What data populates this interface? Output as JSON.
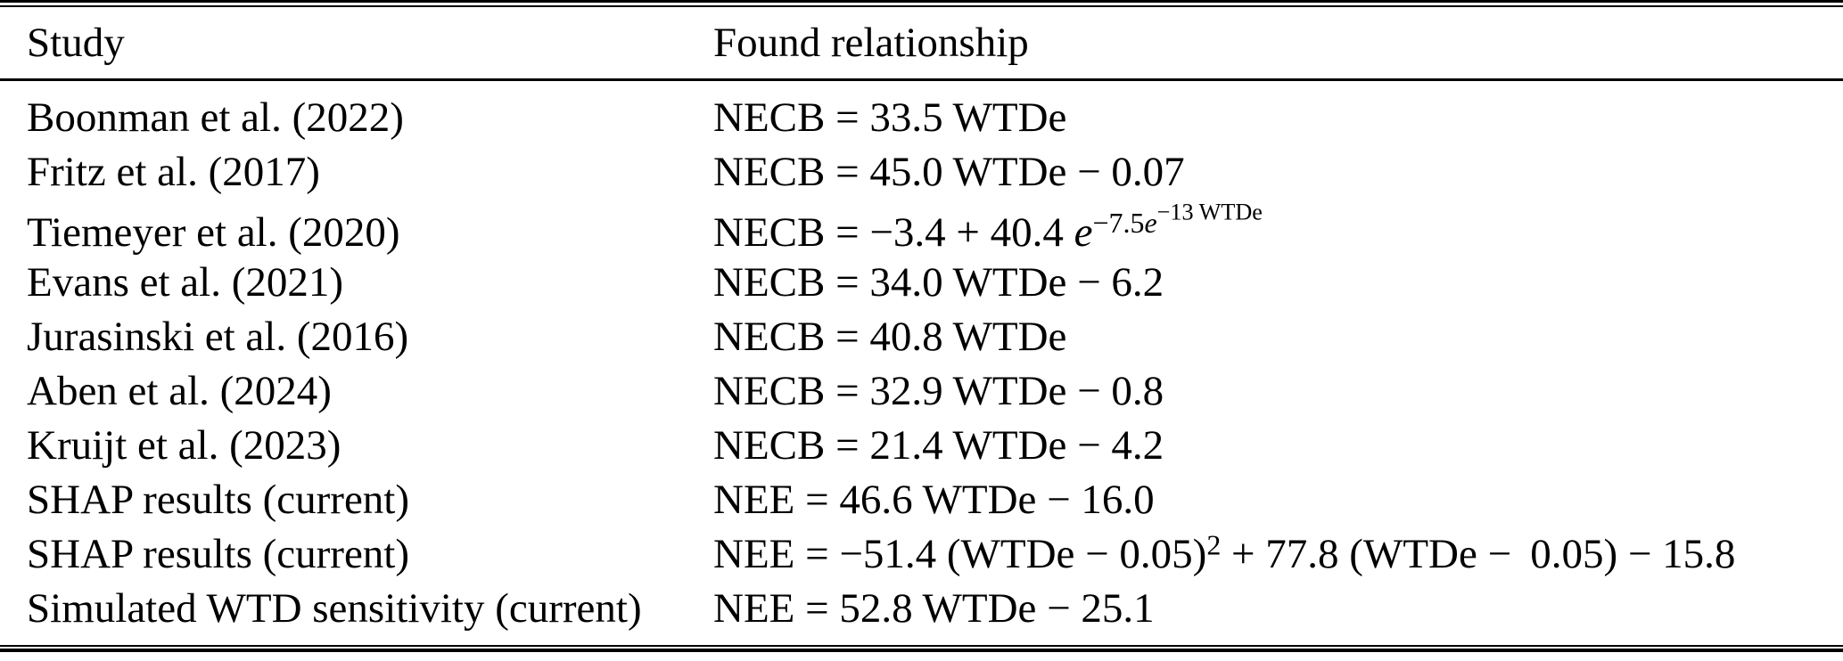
{
  "colors": {
    "text": "#000000",
    "rules": "#000000",
    "background": "#ffffff"
  },
  "table": {
    "headers": {
      "study": "Study",
      "relationship": "Found relationship"
    },
    "rows": [
      {
        "study": "Boonman et al. (2022)",
        "formula": [
          {
            "t": "NECB = 33.5 WTDe"
          }
        ]
      },
      {
        "study": "Fritz et al. (2017)",
        "formula": [
          {
            "t": "NECB = 45.0 WTDe − 0.07"
          }
        ]
      },
      {
        "study": "Tiemeyer et al. (2020)",
        "formula": [
          {
            "t": "NECB = −3.4 + 40.4 "
          },
          {
            "t": "e",
            "i": true
          },
          {
            "t": "−7.5",
            "lvl": 1
          },
          {
            "t": "e",
            "i": true,
            "lvl": 1
          },
          {
            "t": "−13 WTDe",
            "lvl": 2
          }
        ]
      },
      {
        "study": "Evans et al. (2021)",
        "formula": [
          {
            "t": "NECB = 34.0 WTDe − 6.2"
          }
        ]
      },
      {
        "study": "Jurasinski et al. (2016)",
        "formula": [
          {
            "t": "NECB = 40.8 WTDe"
          }
        ]
      },
      {
        "study": "Aben et al. (2024)",
        "formula": [
          {
            "t": "NECB = 32.9 WTDe − 0.8"
          }
        ]
      },
      {
        "study": "Kruijt et al. (2023)",
        "formula": [
          {
            "t": "NECB = 21.4 WTDe − 4.2"
          }
        ]
      },
      {
        "study": "SHAP results (current)",
        "formula": [
          {
            "t": "NEE = 46.6 WTDe − 16.0"
          }
        ]
      },
      {
        "study": "SHAP results (current)",
        "formula": [
          {
            "t": "NEE = −51.4 (WTDe − 0.05)"
          },
          {
            "t": "2",
            "lvl": 1
          },
          {
            "t": " + 77.8 (WTDe −  0.05) − 15.8"
          }
        ]
      },
      {
        "study": "Simulated WTD sensitivity (current)",
        "formula": [
          {
            "t": "NEE = 52.8 WTDe − 25.1"
          }
        ]
      }
    ]
  }
}
